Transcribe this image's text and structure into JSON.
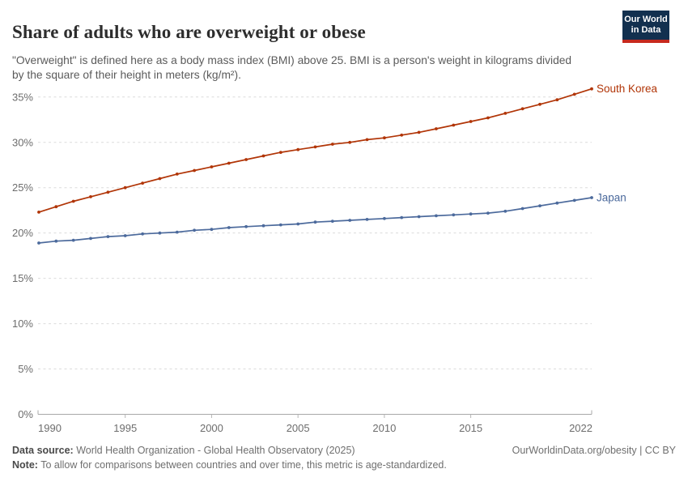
{
  "header": {
    "title": "Share of adults who are overweight or obese",
    "subtitle": "\"Overweight\" is defined here as a body mass index (BMI) above 25. BMI is a person's weight in kilograms divided by the square of their height in meters (kg/m²).",
    "logo": {
      "line1": "Our World",
      "line2": "in Data",
      "bg_color": "#12304F",
      "accent_color": "#C7291E"
    }
  },
  "chart_data": {
    "type": "line",
    "title": "Share of adults who are overweight or obese",
    "x": [
      1990,
      1991,
      1992,
      1993,
      1994,
      1995,
      1996,
      1997,
      1998,
      1999,
      2000,
      2001,
      2002,
      2003,
      2004,
      2005,
      2006,
      2007,
      2008,
      2009,
      2010,
      2011,
      2012,
      2013,
      2014,
      2015,
      2016,
      2017,
      2018,
      2019,
      2020,
      2021,
      2022
    ],
    "series": [
      {
        "name": "South Korea",
        "color": "#B13507",
        "values": [
          22.3,
          22.9,
          23.5,
          24.0,
          24.5,
          25.0,
          25.5,
          26.0,
          26.5,
          26.9,
          27.3,
          27.7,
          28.1,
          28.5,
          28.9,
          29.2,
          29.5,
          29.8,
          30.0,
          30.3,
          30.5,
          30.8,
          31.1,
          31.5,
          31.9,
          32.3,
          32.7,
          33.2,
          33.7,
          34.2,
          34.7,
          35.3,
          35.9
        ]
      },
      {
        "name": "Japan",
        "color": "#4C6A9C",
        "values": [
          18.9,
          19.1,
          19.2,
          19.4,
          19.6,
          19.7,
          19.9,
          20.0,
          20.1,
          20.3,
          20.4,
          20.6,
          20.7,
          20.8,
          20.9,
          21.0,
          21.2,
          21.3,
          21.4,
          21.5,
          21.6,
          21.7,
          21.8,
          21.9,
          22.0,
          22.1,
          22.2,
          22.4,
          22.7,
          23.0,
          23.3,
          23.6,
          23.9
        ]
      }
    ],
    "ylim": [
      0,
      36
    ],
    "yticks": [
      0,
      5,
      10,
      15,
      20,
      25,
      30,
      35
    ],
    "ytick_suffix": "%",
    "xticks": [
      1990,
      1995,
      2000,
      2005,
      2010,
      2015,
      2022
    ],
    "grid": "horizontal-dashed",
    "legend_position": "line-end-labels",
    "axis_color": "#a8a8a8",
    "grid_color": "#dcdcdc",
    "tick_label_color": "#6d6d6d"
  },
  "footer": {
    "datasource_label": "Data source:",
    "datasource_text": " World Health Organization - Global Health Observatory (2025)",
    "note_label": "Note:",
    "note_text": " To allow for comparisons between countries and over time, this metric is age-standardized.",
    "link": "OurWorldinData.org/obesity | CC BY"
  }
}
